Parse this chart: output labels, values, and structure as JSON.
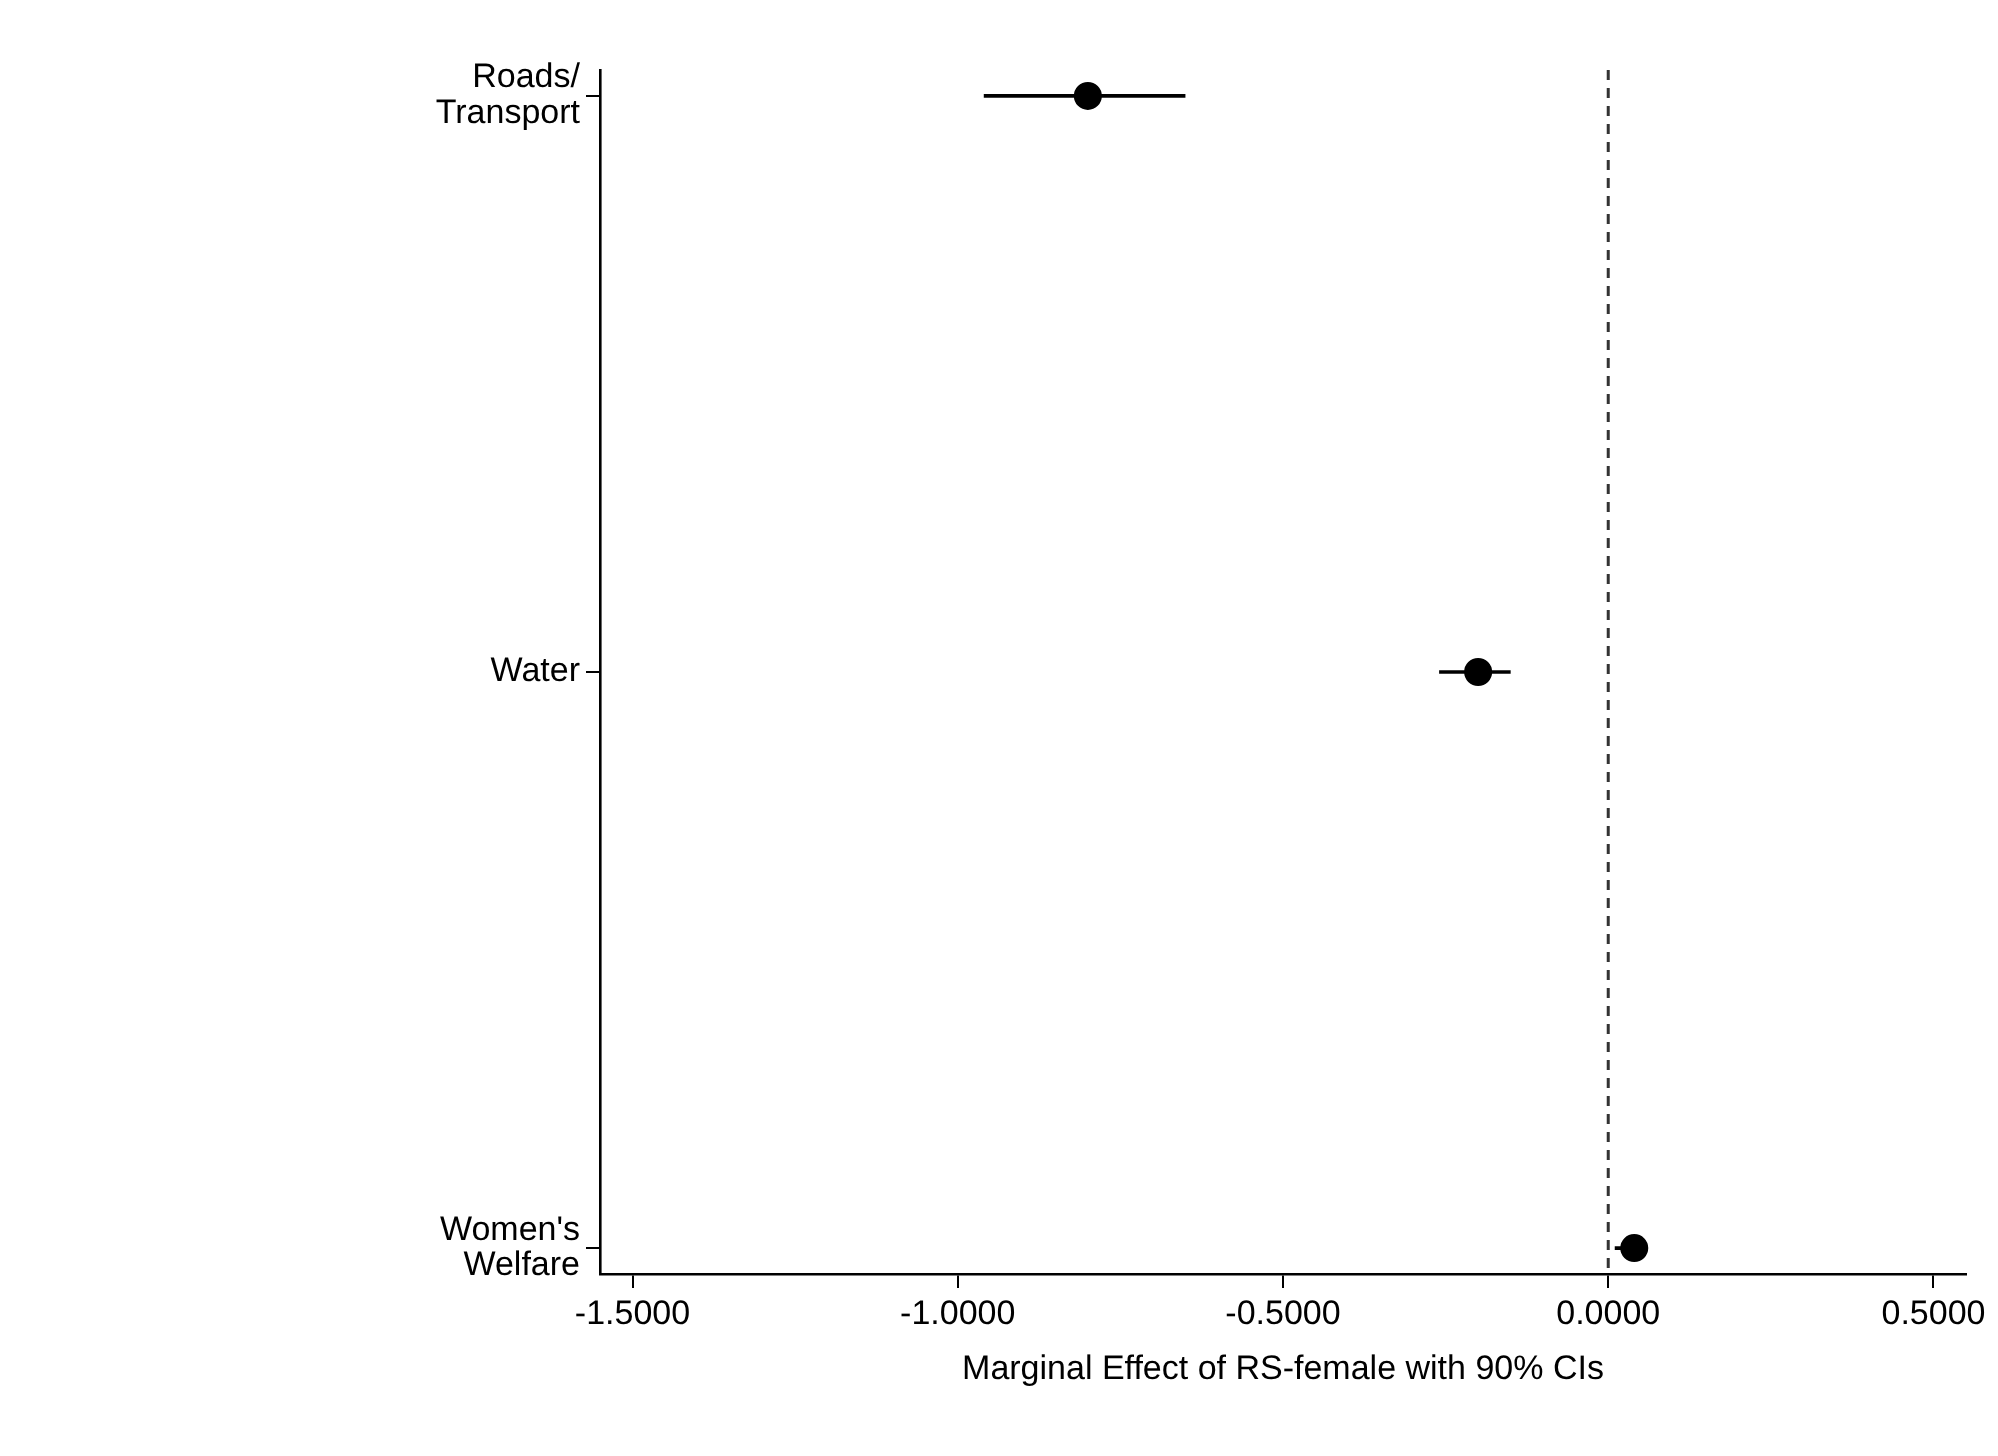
{
  "chart_data": {
    "type": "scatter",
    "orientation": "horizontal",
    "categories": [
      "Roads/Transport",
      "Water",
      "Women's Welfare"
    ],
    "values": [
      -0.8,
      -0.2,
      0.04
    ],
    "errors": [
      [
        -0.96,
        -0.65
      ],
      [
        -0.26,
        -0.15
      ],
      [
        0.01,
        0.06
      ]
    ],
    "color": "#000000",
    "marker": "circle",
    "xlim": [
      -1.55,
      0.55
    ],
    "xticks": [
      {
        "value": -1.5,
        "label": "-1.5000"
      },
      {
        "value": -1.0,
        "label": "-1.0000"
      },
      {
        "value": -0.5,
        "label": "-0.5000"
      },
      {
        "value": 0,
        "label": "0.0000"
      },
      {
        "value": 0.5,
        "label": "0.5000"
      }
    ],
    "xlabel": "Marginal Effect of RS-female with 90% CIs",
    "ref_lines": [
      {
        "axis": "x",
        "value": 0,
        "color": "#333333",
        "line_style": "dashed"
      }
    ],
    "grid": false,
    "legend": false
  }
}
